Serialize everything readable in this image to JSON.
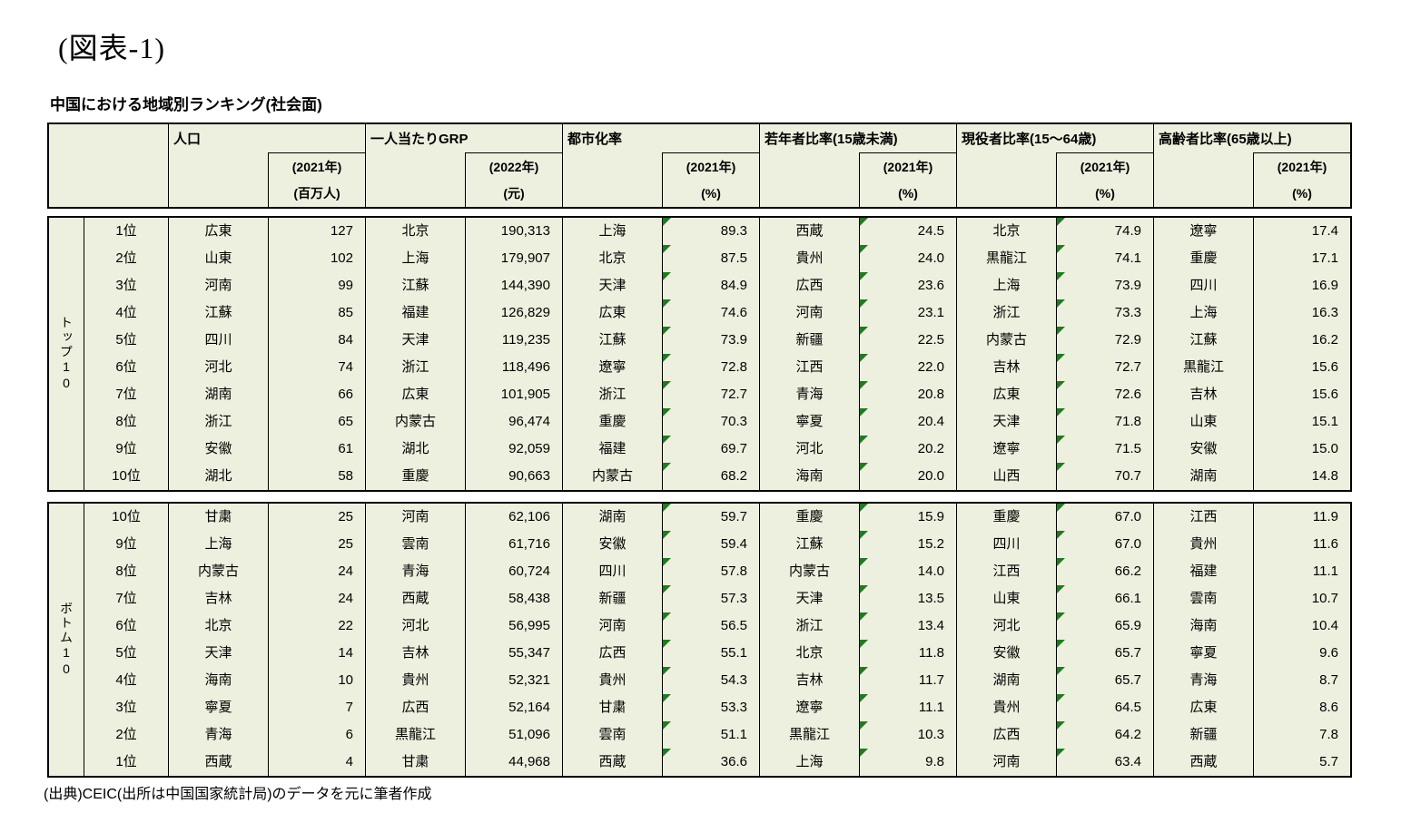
{
  "page": {
    "title": "(図表-1)",
    "subtitle": "中国における地域別ランキング(社会面)",
    "source": "(出典)CEIC(出所は中国国家統計局)のデータを元に筆者作成"
  },
  "colors": {
    "cell_background": "#edf0de",
    "indicator_green": "#1e7b1e",
    "border": "#000000"
  },
  "table": {
    "groups": [
      {
        "label": "人口",
        "year": "(2021年)",
        "unit": "(百万人)",
        "indicator": false
      },
      {
        "label": "一人当たりGRP",
        "year": "(2022年)",
        "unit": "(元)",
        "indicator": false
      },
      {
        "label": "都市化率",
        "year": "(2021年)",
        "unit": "(%)",
        "indicator": true
      },
      {
        "label": "若年者比率(15歳未満)",
        "year": "(2021年)",
        "unit": "(%)",
        "indicator": true
      },
      {
        "label": "現役者比率(15〜64歳)",
        "year": "(2021年)",
        "unit": "(%)",
        "indicator": true
      },
      {
        "label": "高齢者比率(65歳以上)",
        "year": "(2021年)",
        "unit": "(%)",
        "indicator": false
      }
    ],
    "top10": {
      "label": "トップ10",
      "rows": [
        {
          "rank": "1位",
          "cells": [
            {
              "region": "広東",
              "value": "127"
            },
            {
              "region": "北京",
              "value": "190,313"
            },
            {
              "region": "上海",
              "value": "89.3"
            },
            {
              "region": "西蔵",
              "value": "24.5"
            },
            {
              "region": "北京",
              "value": "74.9"
            },
            {
              "region": "遼寧",
              "value": "17.4"
            }
          ]
        },
        {
          "rank": "2位",
          "cells": [
            {
              "region": "山東",
              "value": "102"
            },
            {
              "region": "上海",
              "value": "179,907"
            },
            {
              "region": "北京",
              "value": "87.5"
            },
            {
              "region": "貴州",
              "value": "24.0"
            },
            {
              "region": "黒龍江",
              "value": "74.1"
            },
            {
              "region": "重慶",
              "value": "17.1"
            }
          ]
        },
        {
          "rank": "3位",
          "cells": [
            {
              "region": "河南",
              "value": "99"
            },
            {
              "region": "江蘇",
              "value": "144,390"
            },
            {
              "region": "天津",
              "value": "84.9"
            },
            {
              "region": "広西",
              "value": "23.6"
            },
            {
              "region": "上海",
              "value": "73.9"
            },
            {
              "region": "四川",
              "value": "16.9"
            }
          ]
        },
        {
          "rank": "4位",
          "cells": [
            {
              "region": "江蘇",
              "value": "85"
            },
            {
              "region": "福建",
              "value": "126,829"
            },
            {
              "region": "広東",
              "value": "74.6"
            },
            {
              "region": "河南",
              "value": "23.1"
            },
            {
              "region": "浙江",
              "value": "73.3"
            },
            {
              "region": "上海",
              "value": "16.3"
            }
          ]
        },
        {
          "rank": "5位",
          "cells": [
            {
              "region": "四川",
              "value": "84"
            },
            {
              "region": "天津",
              "value": "119,235"
            },
            {
              "region": "江蘇",
              "value": "73.9"
            },
            {
              "region": "新疆",
              "value": "22.5"
            },
            {
              "region": "内蒙古",
              "value": "72.9"
            },
            {
              "region": "江蘇",
              "value": "16.2"
            }
          ]
        },
        {
          "rank": "6位",
          "cells": [
            {
              "region": "河北",
              "value": "74"
            },
            {
              "region": "浙江",
              "value": "118,496"
            },
            {
              "region": "遼寧",
              "value": "72.8"
            },
            {
              "region": "江西",
              "value": "22.0"
            },
            {
              "region": "吉林",
              "value": "72.7"
            },
            {
              "region": "黒龍江",
              "value": "15.6"
            }
          ]
        },
        {
          "rank": "7位",
          "cells": [
            {
              "region": "湖南",
              "value": "66"
            },
            {
              "region": "広東",
              "value": "101,905"
            },
            {
              "region": "浙江",
              "value": "72.7"
            },
            {
              "region": "青海",
              "value": "20.8"
            },
            {
              "region": "広東",
              "value": "72.6"
            },
            {
              "region": "吉林",
              "value": "15.6"
            }
          ]
        },
        {
          "rank": "8位",
          "cells": [
            {
              "region": "浙江",
              "value": "65"
            },
            {
              "region": "内蒙古",
              "value": "96,474"
            },
            {
              "region": "重慶",
              "value": "70.3"
            },
            {
              "region": "寧夏",
              "value": "20.4"
            },
            {
              "region": "天津",
              "value": "71.8"
            },
            {
              "region": "山東",
              "value": "15.1"
            }
          ]
        },
        {
          "rank": "9位",
          "cells": [
            {
              "region": "安徽",
              "value": "61"
            },
            {
              "region": "湖北",
              "value": "92,059"
            },
            {
              "region": "福建",
              "value": "69.7"
            },
            {
              "region": "河北",
              "value": "20.2"
            },
            {
              "region": "遼寧",
              "value": "71.5"
            },
            {
              "region": "安徽",
              "value": "15.0"
            }
          ]
        },
        {
          "rank": "10位",
          "cells": [
            {
              "region": "湖北",
              "value": "58"
            },
            {
              "region": "重慶",
              "value": "90,663"
            },
            {
              "region": "内蒙古",
              "value": "68.2"
            },
            {
              "region": "海南",
              "value": "20.0"
            },
            {
              "region": "山西",
              "value": "70.7"
            },
            {
              "region": "湖南",
              "value": "14.8"
            }
          ]
        }
      ]
    },
    "bottom10": {
      "label": "ボトム10",
      "rows": [
        {
          "rank": "10位",
          "cells": [
            {
              "region": "甘粛",
              "value": "25"
            },
            {
              "region": "河南",
              "value": "62,106"
            },
            {
              "region": "湖南",
              "value": "59.7"
            },
            {
              "region": "重慶",
              "value": "15.9"
            },
            {
              "region": "重慶",
              "value": "67.0"
            },
            {
              "region": "江西",
              "value": "11.9"
            }
          ]
        },
        {
          "rank": "9位",
          "cells": [
            {
              "region": "上海",
              "value": "25"
            },
            {
              "region": "雲南",
              "value": "61,716"
            },
            {
              "region": "安徽",
              "value": "59.4"
            },
            {
              "region": "江蘇",
              "value": "15.2"
            },
            {
              "region": "四川",
              "value": "67.0"
            },
            {
              "region": "貴州",
              "value": "11.6"
            }
          ]
        },
        {
          "rank": "8位",
          "cells": [
            {
              "region": "内蒙古",
              "value": "24"
            },
            {
              "region": "青海",
              "value": "60,724"
            },
            {
              "region": "四川",
              "value": "57.8"
            },
            {
              "region": "内蒙古",
              "value": "14.0"
            },
            {
              "region": "江西",
              "value": "66.2"
            },
            {
              "region": "福建",
              "value": "11.1"
            }
          ]
        },
        {
          "rank": "7位",
          "cells": [
            {
              "region": "吉林",
              "value": "24"
            },
            {
              "region": "西蔵",
              "value": "58,438"
            },
            {
              "region": "新疆",
              "value": "57.3"
            },
            {
              "region": "天津",
              "value": "13.5"
            },
            {
              "region": "山東",
              "value": "66.1"
            },
            {
              "region": "雲南",
              "value": "10.7"
            }
          ]
        },
        {
          "rank": "6位",
          "cells": [
            {
              "region": "北京",
              "value": "22"
            },
            {
              "region": "河北",
              "value": "56,995"
            },
            {
              "region": "河南",
              "value": "56.5"
            },
            {
              "region": "浙江",
              "value": "13.4"
            },
            {
              "region": "河北",
              "value": "65.9"
            },
            {
              "region": "海南",
              "value": "10.4"
            }
          ]
        },
        {
          "rank": "5位",
          "cells": [
            {
              "region": "天津",
              "value": "14"
            },
            {
              "region": "吉林",
              "value": "55,347"
            },
            {
              "region": "広西",
              "value": "55.1"
            },
            {
              "region": "北京",
              "value": "11.8"
            },
            {
              "region": "安徽",
              "value": "65.7"
            },
            {
              "region": "寧夏",
              "value": "9.6"
            }
          ]
        },
        {
          "rank": "4位",
          "cells": [
            {
              "region": "海南",
              "value": "10"
            },
            {
              "region": "貴州",
              "value": "52,321"
            },
            {
              "region": "貴州",
              "value": "54.3"
            },
            {
              "region": "吉林",
              "value": "11.7"
            },
            {
              "region": "湖南",
              "value": "65.7"
            },
            {
              "region": "青海",
              "value": "8.7"
            }
          ]
        },
        {
          "rank": "3位",
          "cells": [
            {
              "region": "寧夏",
              "value": "7"
            },
            {
              "region": "広西",
              "value": "52,164"
            },
            {
              "region": "甘粛",
              "value": "53.3"
            },
            {
              "region": "遼寧",
              "value": "11.1"
            },
            {
              "region": "貴州",
              "value": "64.5"
            },
            {
              "region": "広東",
              "value": "8.6"
            }
          ]
        },
        {
          "rank": "2位",
          "cells": [
            {
              "region": "青海",
              "value": "6"
            },
            {
              "region": "黒龍江",
              "value": "51,096"
            },
            {
              "region": "雲南",
              "value": "51.1"
            },
            {
              "region": "黒龍江",
              "value": "10.3"
            },
            {
              "region": "広西",
              "value": "64.2"
            },
            {
              "region": "新疆",
              "value": "7.8"
            }
          ]
        },
        {
          "rank": "1位",
          "cells": [
            {
              "region": "西蔵",
              "value": "4"
            },
            {
              "region": "甘粛",
              "value": "44,968"
            },
            {
              "region": "西蔵",
              "value": "36.6"
            },
            {
              "region": "上海",
              "value": "9.8"
            },
            {
              "region": "河南",
              "value": "63.4"
            },
            {
              "region": "西蔵",
              "value": "5.7"
            }
          ]
        }
      ]
    }
  }
}
